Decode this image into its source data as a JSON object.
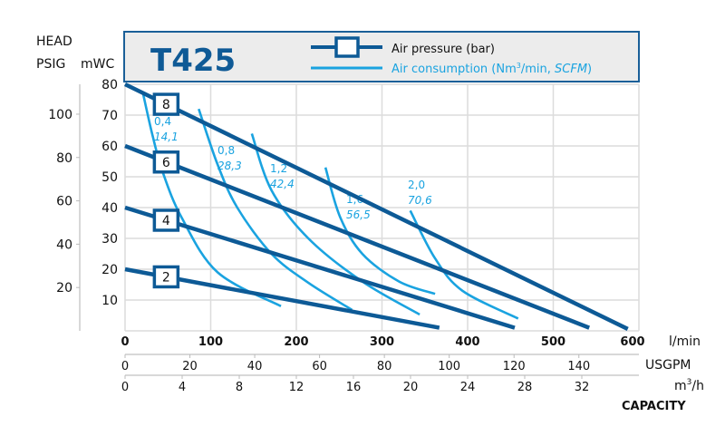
{
  "chart_data": {
    "type": "line",
    "title": "T425",
    "legend": {
      "position": "top",
      "items": [
        {
          "label": "Air pressure (bar)",
          "color": "#0d5a96"
        },
        {
          "label_prefix": "Air consumption (Nm",
          "label_sup": "3",
          "label_mid": "/min, ",
          "label_italic": "SCFM",
          "label_suffix": ")",
          "color": "#1aa3e0"
        }
      ]
    },
    "ylabel_top": "HEAD",
    "y_axes": [
      {
        "unit": "PSIG",
        "ticks": [
          20,
          40,
          60,
          80,
          100
        ]
      },
      {
        "unit": "mWC",
        "ticks": [
          10,
          20,
          30,
          40,
          50,
          60,
          70,
          80
        ],
        "range": [
          0,
          80
        ]
      }
    ],
    "x_axes": [
      {
        "unit": "l/min",
        "ticks": [
          0,
          100,
          200,
          300,
          400,
          500,
          600
        ],
        "range": [
          0,
          600
        ]
      },
      {
        "unit": "USGPM",
        "ticks": [
          0,
          20,
          40,
          60,
          80,
          100,
          120,
          140
        ]
      },
      {
        "unit_base": "m",
        "unit_sup": "3",
        "unit_rest": "/h",
        "ticks": [
          0,
          4,
          8,
          12,
          16,
          20,
          24,
          28,
          32
        ]
      }
    ],
    "xlabel": "CAPACITY",
    "grid": true,
    "pressure_series": [
      {
        "name": "8",
        "points": [
          [
            0,
            80
          ],
          [
            587,
            0.6
          ]
        ]
      },
      {
        "name": "6",
        "points": [
          [
            0,
            60
          ],
          [
            542,
            1
          ]
        ]
      },
      {
        "name": "4",
        "points": [
          [
            0,
            40
          ],
          [
            455,
            1
          ]
        ]
      },
      {
        "name": "2",
        "points": [
          [
            0,
            20
          ],
          [
            367,
            1
          ]
        ]
      }
    ],
    "air_series": [
      {
        "nm3": "0,4",
        "scfm": "14,1",
        "points": [
          [
            21,
            77
          ],
          [
            32,
            63.5
          ],
          [
            44,
            51.5
          ],
          [
            66,
            36.8
          ],
          [
            108,
            19
          ],
          [
            182,
            8
          ]
        ]
      },
      {
        "nm3": "0,8",
        "scfm": "28,3",
        "points": [
          [
            86,
            72
          ],
          [
            108,
            54
          ],
          [
            131,
            40
          ],
          [
            171,
            25
          ],
          [
            214,
            15.6
          ],
          [
            265,
            6.8
          ]
        ]
      },
      {
        "nm3": "1,2",
        "scfm": "42,4",
        "points": [
          [
            148,
            64
          ],
          [
            171,
            45.6
          ],
          [
            214,
            30
          ],
          [
            277,
            16
          ],
          [
            344,
            5.3
          ]
        ]
      },
      {
        "nm3": "1,6",
        "scfm": "56,5",
        "points": [
          [
            234,
            53
          ],
          [
            251,
            37
          ],
          [
            277,
            25
          ],
          [
            320,
            16
          ],
          [
            362,
            12
          ]
        ]
      },
      {
        "nm3": "2,0",
        "scfm": "70,6",
        "points": [
          [
            333,
            39
          ],
          [
            362,
            23.5
          ],
          [
            394,
            13
          ],
          [
            459,
            4
          ]
        ]
      }
    ]
  }
}
